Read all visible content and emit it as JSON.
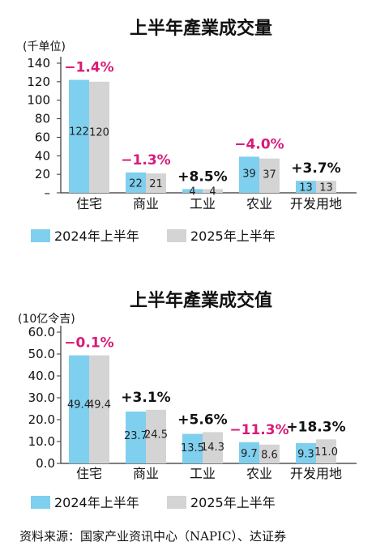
{
  "colors": {
    "y2024": "#7fcfee",
    "y2025": "#d4d4d4",
    "negative": "#d81b78",
    "positive": "#111111",
    "axis": "#333333"
  },
  "chart_data": [
    {
      "type": "bar",
      "title": "上半年產業成交量",
      "unit": "(千单位)",
      "yticks": [
        "140",
        "120",
        "100",
        "80",
        "60",
        "40",
        "20",
        "–"
      ],
      "ylim": [
        0,
        140
      ],
      "categories": [
        "住宅",
        "商业",
        "工业",
        "农业",
        "开发用地"
      ],
      "series": [
        {
          "name": "2024年上半年",
          "values": [
            122,
            22,
            4,
            39,
            13
          ],
          "labels": [
            "122",
            "22",
            "4",
            "39",
            "13"
          ]
        },
        {
          "name": "2025年上半年",
          "values": [
            120,
            21,
            4,
            37,
            13
          ],
          "labels": [
            "120",
            "21",
            "4",
            "37",
            "13"
          ]
        }
      ],
      "changes": [
        "−1.4%",
        "−1.3%",
        "+8.5%",
        "−4.0%",
        "+3.7%"
      ],
      "change_signs": [
        "neg",
        "neg",
        "pos",
        "neg",
        "pos"
      ]
    },
    {
      "type": "bar",
      "title": "上半年產業成交值",
      "unit": "(10亿令吉)",
      "yticks": [
        "60.0",
        "50.0",
        "40.0",
        "30.0",
        "20.0",
        "10.0",
        "0.0"
      ],
      "ylim": [
        0,
        60
      ],
      "categories": [
        "住宅",
        "商业",
        "工业",
        "农业",
        "开发用地"
      ],
      "series": [
        {
          "name": "2024年上半年",
          "values": [
            49.4,
            23.7,
            13.5,
            9.7,
            9.3
          ],
          "labels": [
            "49.4",
            "23.7",
            "13.5",
            "9.7",
            "9.3"
          ]
        },
        {
          "name": "2025年上半年",
          "values": [
            49.4,
            24.5,
            14.3,
            8.6,
            11.0
          ],
          "labels": [
            "49.4",
            "24.5",
            "14.3",
            "8.6",
            "11.0"
          ]
        }
      ],
      "changes": [
        "−0.1%",
        "+3.1%",
        "+5.6%",
        "−11.3%",
        "+18.3%"
      ],
      "change_signs": [
        "neg",
        "pos",
        "pos",
        "neg",
        "pos"
      ]
    }
  ],
  "legend": {
    "y2024": "2024年上半年",
    "y2025": "2025年上半年"
  },
  "source": "资料来源：国家产业资讯中心（NAPIC）、达证券"
}
